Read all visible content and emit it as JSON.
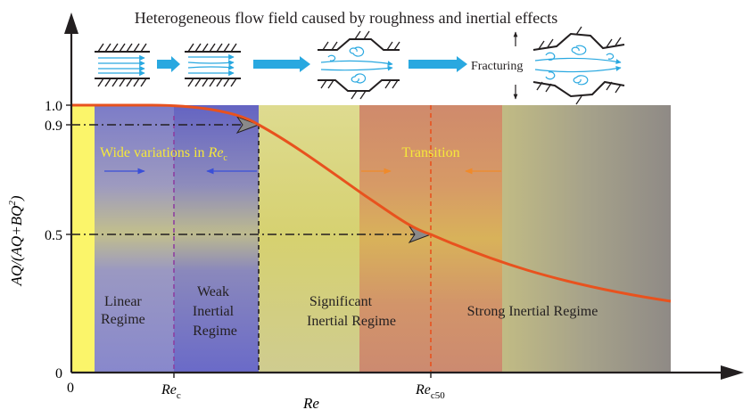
{
  "title": "Heterogeneous flow field caused by roughness and inertial effects",
  "fracturing_label": "Fracturing",
  "y_axis": {
    "label_parts": [
      "AQ/(AQ+BQ",
      "2",
      ")"
    ],
    "ticks": [
      "1.0",
      "0.9",
      "0.5",
      "0"
    ]
  },
  "x_axis": {
    "label": "Re",
    "origin_label": "0",
    "rec_main": "Re",
    "rec_sub": "c",
    "rec50_main": "Re",
    "rec50_sub": "c50"
  },
  "annotations": {
    "wide_variations_text": "Wide variations in ",
    "wide_variations_re": "Re",
    "wide_variations_sub": "c",
    "transition": "Transition"
  },
  "regimes": {
    "linear": [
      "Linear",
      "Regime"
    ],
    "weak": [
      "Weak",
      "Inertial",
      "Regime"
    ],
    "significant": [
      "Significant",
      "Inertial Regime"
    ],
    "strong": [
      "Strong Inertial Regime"
    ]
  },
  "colors": {
    "axis": "#231f20",
    "curve": "#e8521e",
    "flow_arrow": "#29a8e0",
    "linear_zone": "#8c8ccc",
    "weak_zone": "#6e6ec4",
    "significant_zone": "#d4d284",
    "transition_zone": "#d28c6c",
    "strong_zone": "#a8a48a",
    "yellow_strip": "#fbf56a",
    "annotation_yellow": "#f6e83a",
    "dash_purple": "#8e3fa0",
    "dash_red": "#e8521e",
    "arrow_blue": "#3a4fd8"
  }
}
